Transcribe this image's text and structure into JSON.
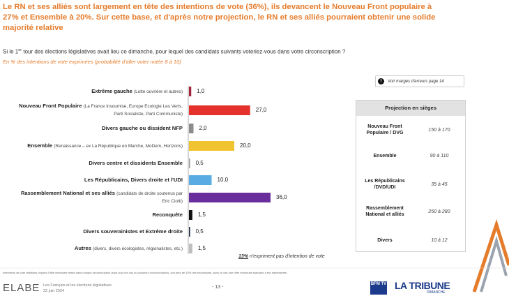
{
  "header": {
    "title": "Le RN et ses alliés sont largement en tête des intentions de vote (36%), ils devancent le Nouveau Front populaire à 27% et Ensemble à 20%. Sur cette base, et d'après notre projection, le RN et ses alliés pourraient obtenir une solide majorité relative"
  },
  "question": {
    "start": "Si le 1",
    "sup": "er",
    "end": " tour des élections législatives avait lieu ce dimanche, pour lequel des candidats suivants voteriez-vous dans votre circonscription ?"
  },
  "subtitle": "En % des intentions de vote exprimées (probabilité d'aller voter notée 8 à 10)",
  "error_note": "Voir marges d'erreurs page 14",
  "chart_data": {
    "type": "bar",
    "orientation": "horizontal",
    "categories": [
      "Extrême gauche",
      "Nouveau Front Populaire",
      "Divers gauche ou dissident NFP",
      "Ensemble",
      "Divers centre et dissidents Ensemble",
      "Les Républicains, Divers droite et l'UDI",
      "Rassemblement National et ses alliés",
      "Reconquête",
      "Divers souverainistes et Extrême droite",
      "Autres"
    ],
    "category_details": [
      "(Lutte ouvrière et autres)",
      "(La France Insoumise, Europe Ecologie Les Verts, Parti Socialiste, Parti Communiste)",
      null,
      "(Renaissance – ex La République en Marche, MoDem, Horizons)",
      null,
      null,
      "(candidats de droite soutenus par Eric Ciotti)",
      null,
      null,
      "(divers, divers écologistes, régionalistes, etc.)"
    ],
    "values": [
      1.0,
      27.0,
      2.0,
      20.0,
      0.5,
      10.0,
      36.0,
      1.5,
      0.5,
      1.5
    ],
    "value_labels": [
      "1,0",
      "27,0",
      "2,0",
      "20,0",
      "0,5",
      "10,0",
      "36,0",
      "1,5",
      "0,5",
      "1,5"
    ],
    "colors": [
      "#a3263a",
      "#e5312b",
      "#8c8c8c",
      "#f0c330",
      "#9e9e9e",
      "#58ace3",
      "#6a2d9c",
      "#111111",
      "#1f2a44",
      "#bdbdbd"
    ]
  },
  "abstention_note": {
    "figure": "13%",
    "text": " n'expriment pas d'intention de vote"
  },
  "projection": {
    "title": "Projection en sièges",
    "rows": [
      [
        "Nouveau Front Populaire / DVG",
        "150 à 170"
      ],
      [
        "Ensemble",
        "90 à 110"
      ],
      [
        "Les Républicains /DVD/UDI",
        "35 à 45"
      ],
      [
        "Rassemblement National et alliés",
        "250 à 280"
      ],
      [
        "Divers",
        "10 à 12"
      ]
    ]
  },
  "footer": {
    "method": "Interviews de vote réalisées d'après l'offre électorale réelle dans chaque circonscription (sauf pour les cas où plusieurs circonscriptions, soit près de 15% des répondants, dans ce cas une offre électorale standard a été administrée)",
    "brand": "ELABE",
    "study": "Les Français et les élections législatives",
    "date": "22 juin 2024",
    "page": "- 13 -",
    "partner1": "BFM TV",
    "partner2": "LA TRIBUNE",
    "partner2_sub": "DIMANCHE"
  }
}
